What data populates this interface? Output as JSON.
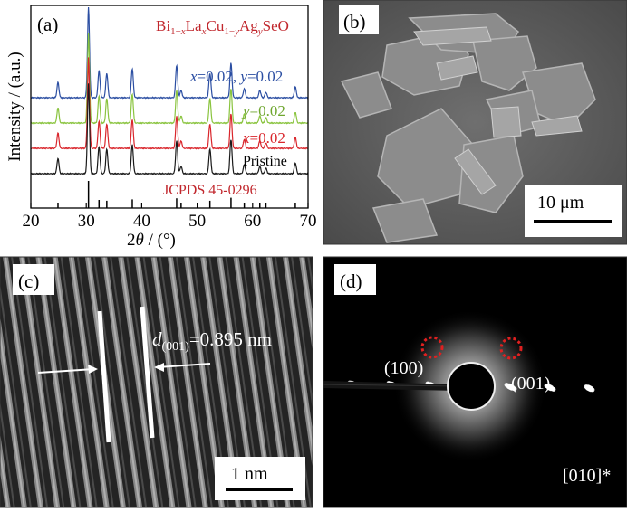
{
  "panels": {
    "a": {
      "label": "(a)"
    },
    "b": {
      "label": "(b)",
      "scale_bar": "10 μm"
    },
    "c": {
      "label": "(c)",
      "scale_bar": "1 nm",
      "annotation": "=0.895 nm",
      "annotation_sym": "d",
      "annotation_sub": "(001)"
    },
    "d": {
      "label": "(d)",
      "spot1": "(100)",
      "spot2": "(001)",
      "zone": "[010]*"
    }
  },
  "chart_data": {
    "type": "line",
    "title": "Bi1−xLaxCu1−yAgySeO",
    "xlabel": "2θ / (°)",
    "ylabel": "Intensity / (a.u.)",
    "xlim": [
      20,
      70
    ],
    "x_ticks": [
      "20",
      "30",
      "40",
      "50",
      "60",
      "70"
    ],
    "grid": false,
    "peaks": [
      24.9,
      30.4,
      32.3,
      33.7,
      38.3,
      46.3,
      47.1,
      52.3,
      56.1,
      58.5,
      61.3,
      62.4,
      67.7
    ],
    "peak_heights": [
      0.17,
      1.0,
      0.3,
      0.27,
      0.32,
      0.36,
      0.08,
      0.27,
      0.38,
      0.1,
      0.08,
      0.06,
      0.12
    ],
    "series": [
      {
        "name": "x=0.02, y=0.02",
        "color": "#2b4ea2",
        "offset": 4
      },
      {
        "name": "y=0.02",
        "color": "#8ac43f",
        "offset": 3
      },
      {
        "name": "x=0.02",
        "color": "#d9262c",
        "offset": 2
      },
      {
        "name": "Pristine",
        "color": "#1a1a1a",
        "offset": 1
      }
    ],
    "reference": {
      "name": "JCPDS 45-0296",
      "color": "#c1272d"
    }
  }
}
